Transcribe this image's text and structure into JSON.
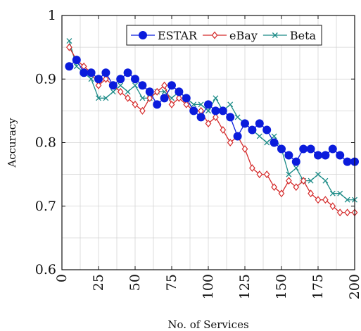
{
  "chart_data": {
    "type": "line",
    "xlabel": "No. of Services",
    "ylabel": "Accuracy",
    "xlim": [
      0,
      200
    ],
    "ylim": [
      0.6,
      1.0
    ],
    "xticks": [
      "0",
      "25",
      "50",
      "75",
      "100",
      "125",
      "150",
      "175",
      "200"
    ],
    "xtick_values": [
      0,
      25,
      50,
      75,
      100,
      125,
      150,
      175,
      200
    ],
    "yticks": [
      "0.6",
      "0.7",
      "0.8",
      "0.9",
      "1"
    ],
    "ytick_values": [
      0.6,
      0.7,
      0.8,
      0.9,
      1.0
    ],
    "grid": true,
    "legend_position": "top-right",
    "series": [
      {
        "name": "ESTAR",
        "color": "#0b1cdc",
        "marker": "circle",
        "x": [
          5,
          10,
          15,
          20,
          25,
          30,
          35,
          40,
          45,
          50,
          55,
          60,
          65,
          70,
          75,
          80,
          85,
          90,
          95,
          100,
          105,
          110,
          115,
          120,
          125,
          130,
          135,
          140,
          145,
          150,
          155,
          160,
          165,
          170,
          175,
          180,
          185,
          190,
          195,
          200
        ],
        "y": [
          0.92,
          0.93,
          0.91,
          0.91,
          0.9,
          0.91,
          0.89,
          0.9,
          0.91,
          0.9,
          0.89,
          0.88,
          0.86,
          0.87,
          0.89,
          0.88,
          0.87,
          0.85,
          0.84,
          0.86,
          0.85,
          0.85,
          0.84,
          0.81,
          0.83,
          0.82,
          0.83,
          0.82,
          0.8,
          0.79,
          0.78,
          0.77,
          0.79,
          0.79,
          0.78,
          0.78,
          0.79,
          0.78,
          0.77,
          0.77
        ]
      },
      {
        "name": "eBay",
        "color": "#d42a2a",
        "marker": "diamond",
        "x": [
          5,
          10,
          15,
          20,
          25,
          30,
          35,
          40,
          45,
          50,
          55,
          60,
          65,
          70,
          75,
          80,
          85,
          90,
          95,
          100,
          105,
          110,
          115,
          120,
          125,
          130,
          135,
          140,
          145,
          150,
          155,
          160,
          165,
          170,
          175,
          180,
          185,
          190,
          195,
          200
        ],
        "y": [
          0.95,
          0.93,
          0.92,
          0.91,
          0.89,
          0.9,
          0.89,
          0.88,
          0.87,
          0.86,
          0.85,
          0.87,
          0.88,
          0.89,
          0.86,
          0.87,
          0.86,
          0.85,
          0.85,
          0.83,
          0.84,
          0.82,
          0.8,
          0.81,
          0.79,
          0.76,
          0.75,
          0.75,
          0.73,
          0.72,
          0.74,
          0.73,
          0.74,
          0.72,
          0.71,
          0.71,
          0.7,
          0.69,
          0.69,
          0.69
        ]
      },
      {
        "name": "Beta",
        "color": "#1a8a86",
        "marker": "cross",
        "x": [
          5,
          10,
          15,
          20,
          25,
          30,
          35,
          40,
          45,
          50,
          55,
          60,
          65,
          70,
          75,
          80,
          85,
          90,
          95,
          100,
          105,
          110,
          115,
          120,
          125,
          130,
          135,
          140,
          145,
          150,
          155,
          160,
          165,
          170,
          175,
          180,
          185,
          190,
          195,
          200
        ],
        "y": [
          0.96,
          0.92,
          0.91,
          0.9,
          0.87,
          0.87,
          0.88,
          0.89,
          0.88,
          0.89,
          0.87,
          0.87,
          0.88,
          0.88,
          0.87,
          0.88,
          0.87,
          0.86,
          0.86,
          0.85,
          0.87,
          0.85,
          0.86,
          0.84,
          0.83,
          0.82,
          0.81,
          0.8,
          0.81,
          0.79,
          0.75,
          0.76,
          0.74,
          0.74,
          0.75,
          0.74,
          0.72,
          0.72,
          0.71,
          0.71
        ]
      }
    ]
  }
}
